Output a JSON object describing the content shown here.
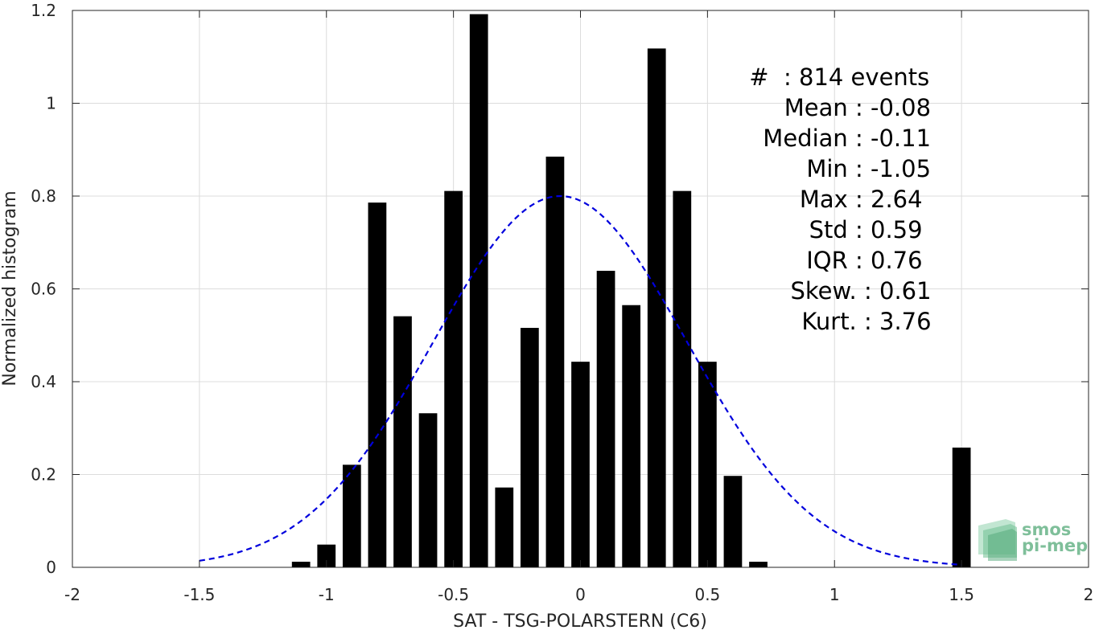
{
  "chart_data": {
    "type": "bar",
    "xlabel": "SAT - TSG-POLARSTERN (C6)",
    "ylabel": "Normalized histogram",
    "xlim": [
      -2,
      2
    ],
    "ylim": [
      0,
      1.2
    ],
    "xticks": [
      -2,
      -1.5,
      -1,
      -0.5,
      0,
      0.5,
      1,
      1.5,
      2
    ],
    "xtick_labels": [
      "-2",
      "-1.5",
      "-1",
      "-0.5",
      "0",
      "0.5",
      "1",
      "1.5",
      "2"
    ],
    "yticks": [
      0,
      0.2,
      0.4,
      0.6,
      0.8,
      1,
      1.2
    ],
    "ytick_labels": [
      "0",
      "0.2",
      "0.4",
      "0.6",
      "0.8",
      "1",
      "1.2"
    ],
    "grid": true,
    "bars": {
      "color": "#000000",
      "bin_width": 0.1,
      "x": [
        -1.1,
        -1.0,
        -0.9,
        -0.8,
        -0.7,
        -0.6,
        -0.5,
        -0.4,
        -0.3,
        -0.2,
        -0.1,
        0.0,
        0.1,
        0.2,
        0.3,
        0.4,
        0.5,
        0.6,
        0.7,
        1.5
      ],
      "values": [
        0.012,
        0.049,
        0.221,
        0.786,
        0.541,
        0.332,
        0.811,
        1.192,
        0.172,
        0.516,
        0.885,
        0.443,
        0.639,
        0.565,
        1.118,
        0.811,
        0.443,
        0.197,
        0.012,
        0.258
      ]
    },
    "fit": {
      "style": "dashed",
      "color": "#0000dd",
      "mean": -0.08,
      "std": 0.5,
      "xrange": [
        -1.5,
        1.5
      ],
      "peak": 0.8
    },
    "annotations": [
      {
        "label": "#  ",
        "value": ": 814 events"
      },
      {
        "label": "Mean ",
        "value": ": -0.08"
      },
      {
        "label": "Median ",
        "value": ": -0.11"
      },
      {
        "label": "Min ",
        "value": ": -1.05"
      },
      {
        "label": "Max ",
        "value": ": 2.64"
      },
      {
        "label": "Std ",
        "value": ": 0.59"
      },
      {
        "label": "IQR ",
        "value": ": 0.76"
      },
      {
        "label": "Skew. ",
        "value": ": 0.61"
      },
      {
        "label": "Kurt. ",
        "value": ": 3.76"
      }
    ],
    "logo": {
      "line1": "smos",
      "line2": "pi-mep",
      "color": "#7fbf9a"
    }
  }
}
